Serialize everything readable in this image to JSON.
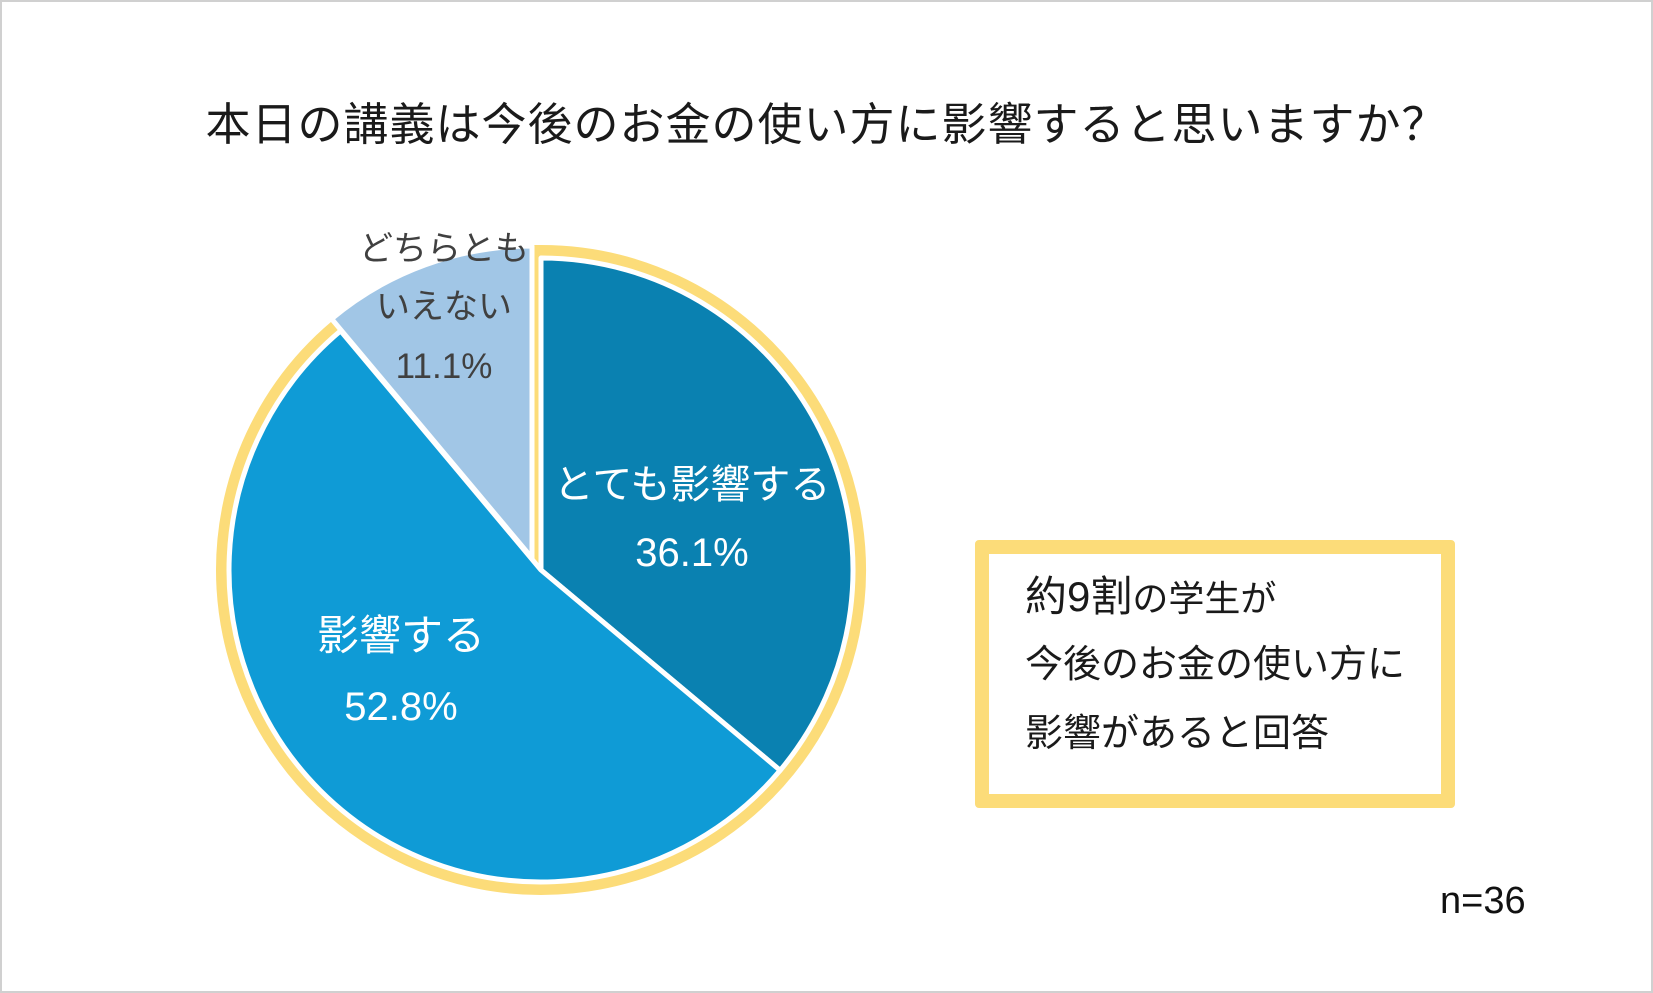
{
  "chart_data": {
    "type": "pie",
    "title": "本日の講義は今後のお金の使い方に影響すると思いますか？",
    "start": "top",
    "direction": "clockwise",
    "slices": [
      {
        "label": "とても影響する",
        "value": 36.1,
        "value_label": "36.1%",
        "color": "#0a81b1",
        "label_color": "#ffffff"
      },
      {
        "label": "影響する",
        "value": 52.8,
        "value_label": "52.8%",
        "color": "#0f9bd6",
        "label_color": "#ffffff"
      },
      {
        "label_lines": [
          "どちらとも",
          "いえない"
        ],
        "value": 11.1,
        "value_label": "11.1%",
        "color": "#a1c6e6",
        "label_color": "#404040"
      }
    ],
    "highlight_outline_color": "#fcdc79",
    "sample_size": "n=36"
  },
  "note": {
    "line1_bold": "約9割",
    "line1_rest": "の学生が",
    "line2": "今後のお金の使い方に",
    "line3": "影響があると回答"
  }
}
